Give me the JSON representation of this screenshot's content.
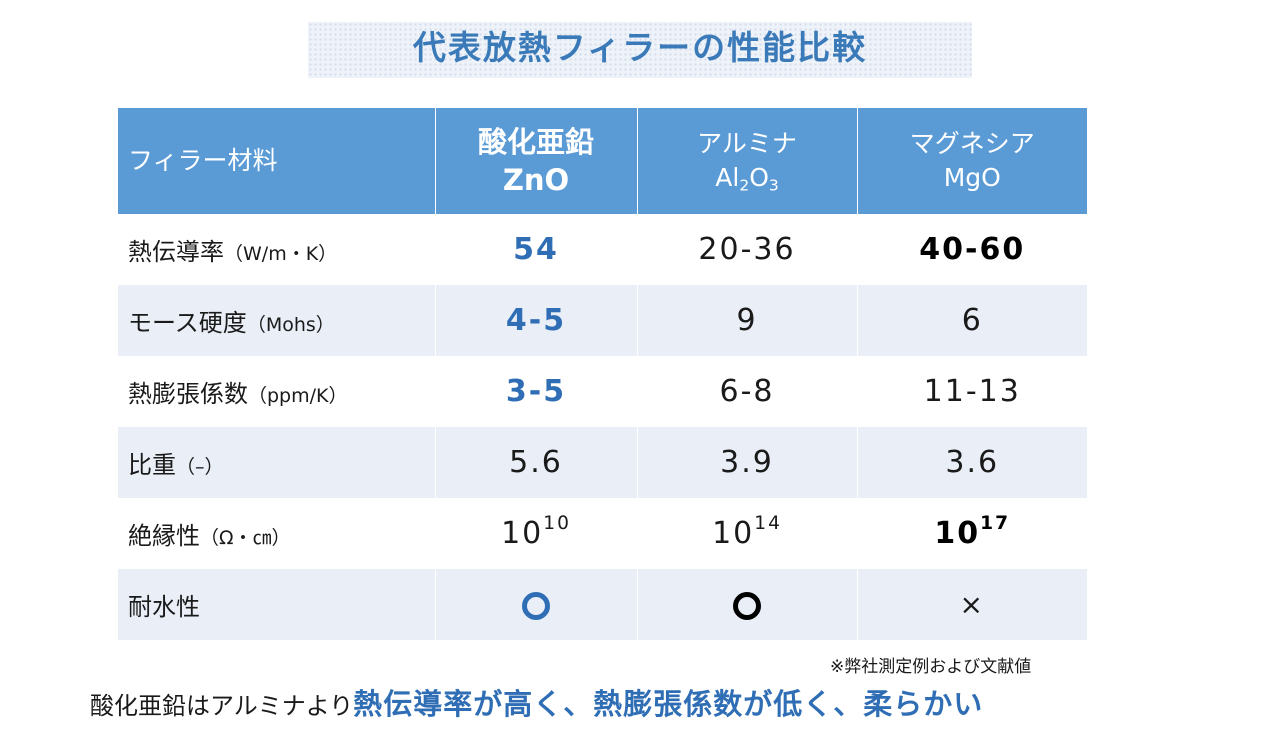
{
  "title": "代表放熱フィラーの性能比較",
  "table": {
    "header": {
      "label": "フィラー材料",
      "col1": {
        "line1": "酸化亜鉛",
        "line2": "ZnO"
      },
      "col2": {
        "line1": "アルミナ",
        "line2_base": "Al",
        "line2_sub1": "2",
        "line2_mid": "O",
        "line2_sub2": "3"
      },
      "col3": {
        "line1": "マグネシア",
        "line2": "MgO"
      }
    },
    "rows": [
      {
        "label": "熱伝導率",
        "unit": "（W/m・K）",
        "zno": "54",
        "al2o3": "20-36",
        "mgo": "40-60"
      },
      {
        "label": "モース硬度",
        "unit": "（Mohs）",
        "zno": "4-5",
        "al2o3": "9",
        "mgo": "6"
      },
      {
        "label": "熱膨張係数",
        "unit": "（ppm/K）",
        "zno": "3-5",
        "al2o3": "6-8",
        "mgo": "11-13"
      },
      {
        "label": "比重",
        "unit": "（–）",
        "zno": "5.6",
        "al2o3": "3.9",
        "mgo": "3.6"
      },
      {
        "label": "絶縁性",
        "unit": "（Ω・㎝）",
        "zno_base": "10",
        "zno_exp": "10",
        "al2o3_base": "10",
        "al2o3_exp": "14",
        "mgo_base": "10",
        "mgo_exp": "17"
      },
      {
        "label": "耐水性",
        "unit": "",
        "zno_icon": "circle-icon",
        "al2o3_icon": "circle-icon",
        "mgo": "×"
      }
    ]
  },
  "note": "※弊社測定例および文献値",
  "summary": {
    "prefix": "酸化亜鉛はアルミナより",
    "emphasis": "熱伝導率が高く、熱膨張係数が低く、柔らかい"
  },
  "colors": {
    "header_bg": "#5b9bd5",
    "accent": "#2f6eb5",
    "row_alt": "#e9eef7"
  }
}
